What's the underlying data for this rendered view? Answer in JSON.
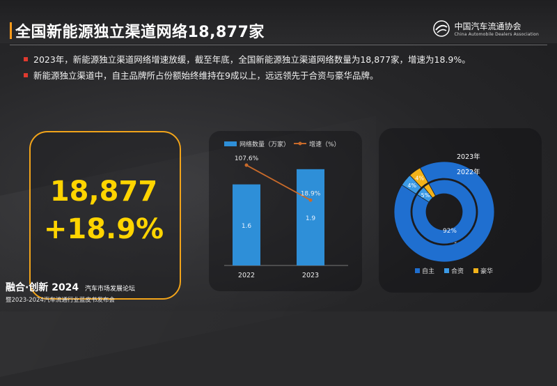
{
  "header": {
    "title": "全国新能源独立渠道网络18,877家",
    "logo_cn": "中国汽车流通协会",
    "logo_en": "China Automobile Dealers Association"
  },
  "bullets": [
    "2023年，新能源独立渠道网络增速放缓，截至年底，全国新能源独立渠道网络数量为18,877家，增速为18.9%。",
    "新能源独立渠道中，自主品牌所占份额始终维持在9成以上，远远领先于合资与豪华品牌。"
  ],
  "highlight": {
    "count": "18,877",
    "growth": "+18.9%"
  },
  "footer": {
    "brand": "融合·创新",
    "year": "2024",
    "forum": "汽车市场发展论坛",
    "line2": "暨2023-2024汽车流通行业蓝皮书发布会"
  },
  "colors": {
    "bar": "#2e8fd8",
    "line": "#c86a2a",
    "accent": "#ffd400",
    "frame": "#f2a41a",
    "donut_main": "#1f6fd0",
    "donut_jv": "#3b9ae6",
    "donut_lux": "#f2b21a"
  },
  "chart_data": [
    {
      "type": "bar",
      "categories": [
        "2022",
        "2023"
      ],
      "series": [
        {
          "name": "网络数量（万家）",
          "values": [
            1.6,
            1.9
          ],
          "labels": [
            "1.6",
            "1.9"
          ]
        },
        {
          "name": "增速（%）",
          "values": [
            107.6,
            18.9
          ],
          "labels": [
            "107.6%",
            "18.9%"
          ],
          "render": "line"
        }
      ],
      "legend_position": "top"
    },
    {
      "type": "pie",
      "style": "nested-donut",
      "legend": [
        "自主",
        "合资",
        "豪华"
      ],
      "rings": [
        {
          "name": "2023年",
          "values": [
            92,
            4,
            4
          ],
          "labels": [
            "92%",
            "4%",
            "4%"
          ]
        },
        {
          "name": "2022年",
          "values": [
            92,
            5,
            3
          ],
          "labels": [
            "92%",
            "5%",
            ""
          ]
        }
      ]
    }
  ]
}
